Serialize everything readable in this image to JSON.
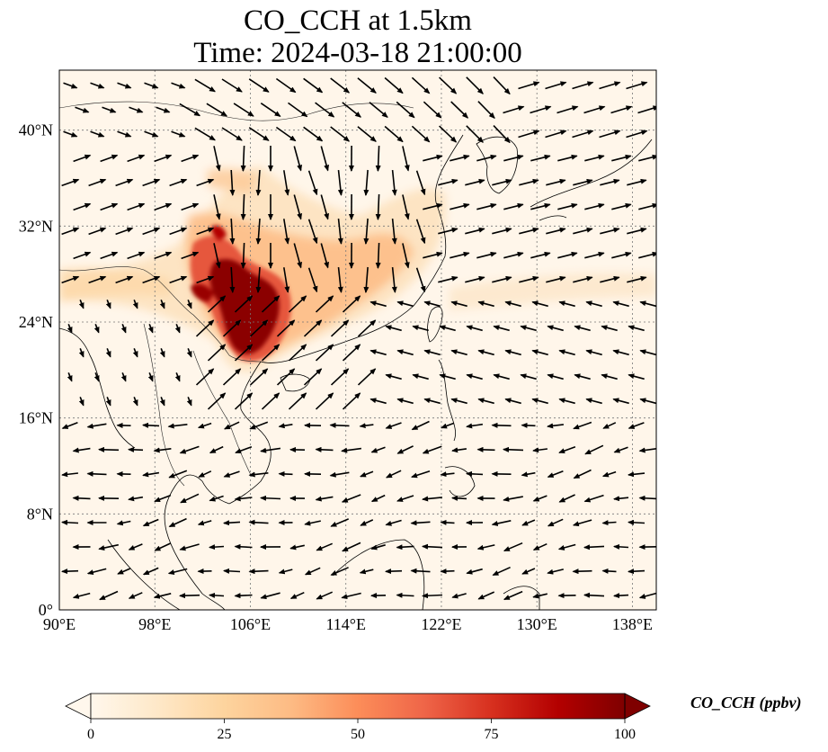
{
  "title_line1": "CO_CCH at 1.5km",
  "title_line2": "Time: 2024-03-18 21:00:00",
  "map": {
    "variable": "CO_CCH",
    "height": "1.5km",
    "time": "2024-03-18 21:00:00",
    "lon_range": [
      90,
      140
    ],
    "lat_range": [
      0,
      45
    ],
    "lon_ticks": [
      90,
      98,
      106,
      114,
      122,
      130,
      138
    ],
    "lon_tick_labels": [
      "90°E",
      "98°E",
      "106°E",
      "114°E",
      "122°E",
      "130°E",
      "138°E"
    ],
    "lat_ticks": [
      0,
      8,
      16,
      24,
      32,
      40
    ],
    "lat_tick_labels": [
      "0°",
      "8°N",
      "16°N",
      "24°N",
      "32°N",
      "40°N"
    ],
    "gridlines": true,
    "colormap": "OrRd",
    "colors": {
      "low": "#fff7ec",
      "mid_low": "#fdd49e",
      "mid": "#fc8d59",
      "mid_high": "#d7301f",
      "high": "#7f0000"
    },
    "wind_vectors": true
  },
  "colorbar": {
    "title": "CO_CCH (ppbv)",
    "range": [
      0,
      100
    ],
    "ticks": [
      0,
      25,
      50,
      75,
      100
    ],
    "tick_labels": [
      "0",
      "25",
      "50",
      "75",
      "100"
    ],
    "extend": "both"
  }
}
